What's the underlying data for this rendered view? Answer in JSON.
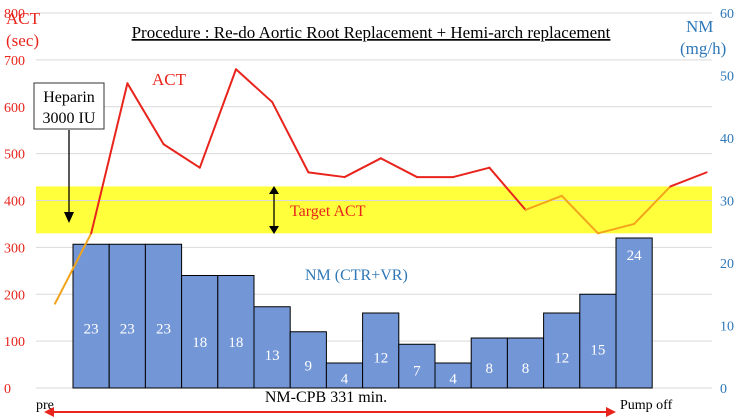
{
  "chart_data": {
    "type": "bar+line",
    "title": "Procedure : Re-do Aortic Root Replacement + Hemi-arch replacement",
    "left_axis": {
      "label_line1": "ACT",
      "label_line2": "(sec)",
      "min": 0,
      "max": 800,
      "ticks": [
        0,
        100,
        200,
        300,
        400,
        500,
        600,
        700,
        800
      ],
      "color": "#e8241c"
    },
    "right_axis": {
      "label_line1": "NM",
      "label_line2": "(mg/h)",
      "min": 0,
      "max": 60,
      "ticks": [
        0,
        10,
        20,
        30,
        40,
        50,
        60
      ],
      "color": "#2e78b7"
    },
    "target_band": {
      "label": "Target ACT",
      "y_min": 330,
      "y_max": 430,
      "color": "#ffff3c"
    },
    "bars": {
      "name": "NM (CTR+VR)",
      "color": "#7396d6",
      "values": [
        23,
        23,
        23,
        18,
        18,
        13,
        9,
        4,
        12,
        7,
        4,
        8,
        8,
        12,
        15,
        24
      ],
      "labels": [
        "23",
        "23",
        "23",
        "18",
        "18",
        "13",
        "9",
        "4",
        "12",
        "7",
        "4",
        "8",
        "8",
        "12",
        "15",
        "24"
      ]
    },
    "act_series": {
      "name": "ACT",
      "color": "#e8241c",
      "below_target_color": "#f2a51c",
      "x": [
        0,
        1,
        2,
        3,
        4,
        5,
        6,
        7,
        8,
        9,
        10,
        11,
        12,
        13,
        14,
        15,
        16,
        17,
        18
      ],
      "values": [
        180,
        330,
        650,
        520,
        470,
        680,
        610,
        460,
        450,
        490,
        450,
        450,
        470,
        380,
        410,
        330,
        350,
        430,
        460
      ]
    },
    "annotations": {
      "heparin_line1": "Heparin",
      "heparin_line2": "3000 IU",
      "cpb_label": "NM-CPB  331 min.",
      "pre_label": "pre",
      "pump_off_label": "Pump off"
    }
  }
}
